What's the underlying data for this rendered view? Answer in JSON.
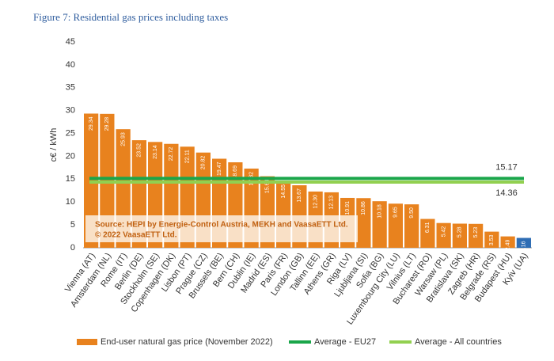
{
  "chart_data": {
    "type": "bar",
    "title": "Figure 7: Residential gas prices including taxes",
    "y_label": "c€ / kWh",
    "source": [
      "Source: HEPI by Energie-Control Austria, MEKH and VaasaETT Ltd.",
      "© 2022 VaasaETT Ltd."
    ],
    "categories": [
      "Vienna (AT)",
      "Amsterdam (NL)",
      "Rome (IT)",
      "Berlin (DE)",
      "Stockholm (SE)",
      "Copenhagen (DK)",
      "Lisbon (PT)",
      "Prague (CZ)",
      "Brussels (BE)",
      "Bern (CH)",
      "Dublin (IE)",
      "Madrid (ES)",
      "Paris (FR)",
      "London (GB)",
      "Tallinn (EE)",
      "Athens (GR)",
      "Riga (LV)",
      "Ljubljana (SI)",
      "Sofia (BG)",
      "Luxembourg City (LU)",
      "Vilnius (LT)",
      "Bucharest (RO)",
      "Warsaw (PL)",
      "Bratislava (SK)",
      "Zagreb (HR)",
      "Belgrade (RS)",
      "Budapest (HU)",
      "Kyiv (UA)"
    ],
    "series": [
      {
        "name": "End-user natural gas price (November 2022)",
        "color": "#e8821e",
        "values": [
          29.34,
          29.28,
          25.93,
          23.52,
          23.14,
          22.72,
          22.11,
          20.82,
          19.47,
          18.69,
          17.32,
          15.64,
          14.55,
          13.67,
          12.3,
          12.13,
          10.91,
          10.86,
          10.18,
          9.65,
          9.5,
          6.31,
          5.42,
          5.28,
          5.23,
          3.53,
          2.49,
          2.16
        ],
        "value_labels": [
          "29.34",
          "29.28",
          "25.93",
          "23.52",
          "23.14",
          "22.72",
          "22.11",
          "20.82",
          "19.47",
          "18.69",
          "17.32",
          "15.64",
          "14.55",
          "13.67",
          "12.30",
          "12.13",
          "10.91",
          "10.86",
          "10.18",
          "9.65",
          "9.50",
          "6.31",
          "5.42",
          "5.28",
          "5.23",
          "3.53",
          "2.49",
          "2.16"
        ],
        "colors": [
          "#e8821e",
          "#e8821e",
          "#e8821e",
          "#e8821e",
          "#e8821e",
          "#e8821e",
          "#e8821e",
          "#e8821e",
          "#e8821e",
          "#e8821e",
          "#e8821e",
          "#e8821e",
          "#e8821e",
          "#e8821e",
          "#e8821e",
          "#e8821e",
          "#e8821e",
          "#e8821e",
          "#e8821e",
          "#e8821e",
          "#e8821e",
          "#e8821e",
          "#e8821e",
          "#e8821e",
          "#e8821e",
          "#e8821e",
          "#e8821e",
          "#2e6db4"
        ]
      }
    ],
    "averages": [
      {
        "name": "Average - EU27",
        "color": "#1aa64a",
        "value": 15.17
      },
      {
        "name": "Average - All countries",
        "color": "#92d050",
        "value": 14.36
      }
    ],
    "ylim": [
      0,
      45
    ],
    "yticks": [
      0,
      5,
      10,
      15,
      20,
      25,
      30,
      35,
      40,
      45
    ],
    "grid": false,
    "legend": "bottom"
  }
}
